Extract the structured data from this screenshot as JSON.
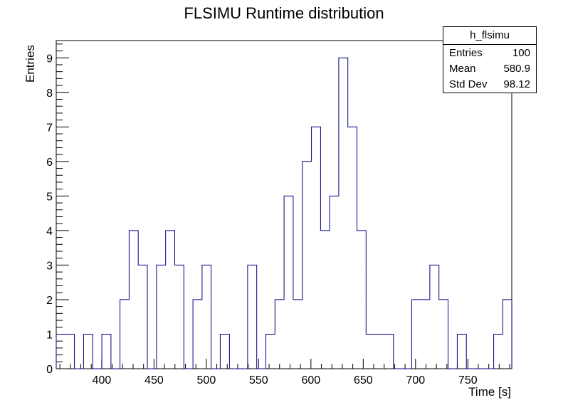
{
  "chart_data": {
    "type": "bar",
    "style": "step-histogram",
    "title": "FLSIMU Runtime distribution",
    "xlabel": "Time [s]",
    "ylabel": "Entries",
    "xlim": [
      356.5,
      792.0
    ],
    "ylim": [
      0,
      9.5
    ],
    "xticks": [
      400,
      450,
      500,
      550,
      600,
      650,
      700,
      750
    ],
    "yticks": [
      0,
      1,
      2,
      3,
      4,
      5,
      6,
      7,
      8,
      9
    ],
    "line_color": "#000080",
    "bin_edges": [
      356.5,
      365.2,
      373.9,
      382.6,
      391.4,
      400.1,
      408.8,
      417.5,
      426.2,
      434.9,
      443.6,
      452.4,
      461.1,
      469.8,
      478.5,
      487.2,
      495.9,
      504.6,
      513.3,
      522.1,
      530.8,
      539.5,
      548.2,
      556.9,
      565.6,
      574.3,
      583.0,
      591.8,
      600.5,
      609.2,
      617.9,
      626.6,
      635.3,
      644.0,
      652.7,
      661.5,
      670.2,
      678.9,
      687.6,
      696.3,
      705.0,
      713.7,
      722.4,
      731.1,
      739.9,
      748.6,
      757.3,
      766.0,
      774.7,
      783.4,
      792.1
    ],
    "values": [
      1,
      1,
      0,
      1,
      0,
      1,
      0,
      2,
      4,
      3,
      0,
      3,
      4,
      3,
      0,
      2,
      3,
      0,
      1,
      0,
      0,
      3,
      0,
      1,
      2,
      5,
      2,
      6,
      7,
      4,
      5,
      9,
      7,
      4,
      1,
      1,
      1,
      0,
      0,
      2,
      2,
      3,
      2,
      0,
      1,
      0,
      0,
      0,
      1,
      2
    ]
  },
  "stats_box": {
    "name": "h_flsimu",
    "rows": [
      {
        "label": "Entries",
        "value": "100"
      },
      {
        "label": "Mean",
        "value": "580.9"
      },
      {
        "label": "Std Dev",
        "value": "98.12"
      }
    ]
  }
}
